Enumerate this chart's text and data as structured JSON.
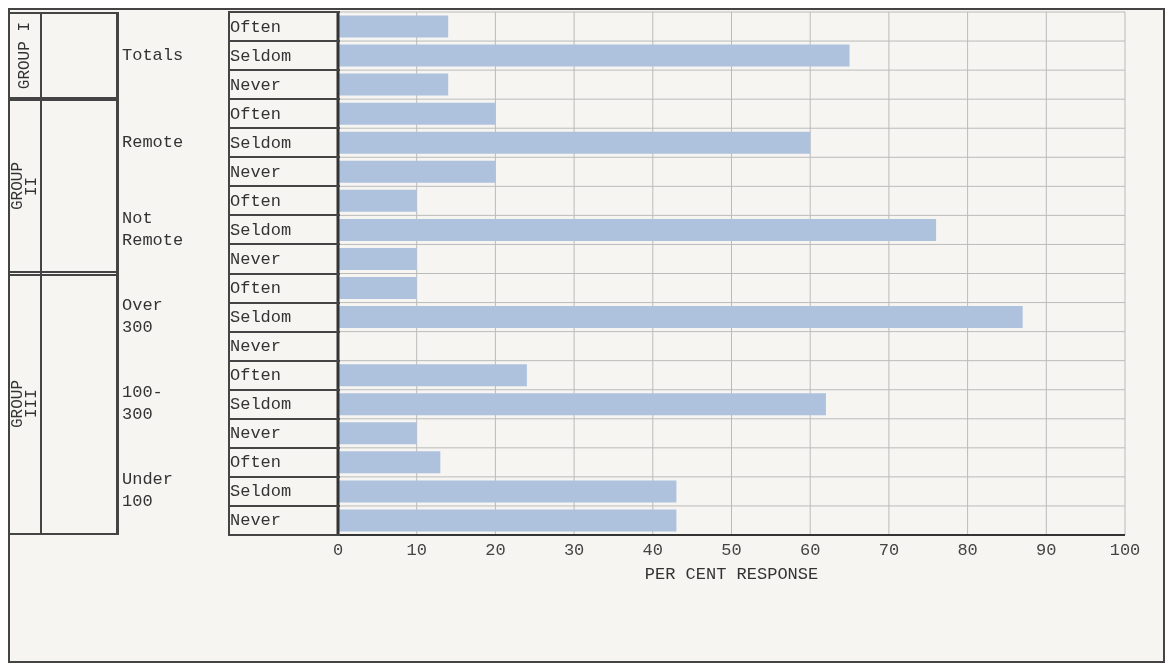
{
  "chart_data": {
    "type": "bar",
    "orientation": "horizontal",
    "xlabel": "PER CENT RESPONSE",
    "categories": [
      "Often",
      "Seldom",
      "Never",
      "Often",
      "Seldom",
      "Never",
      "Often",
      "Seldom",
      "Never",
      "Often",
      "Seldom",
      "Never",
      "Often",
      "Seldom",
      "Never",
      "Often",
      "Seldom",
      "Never"
    ],
    "values": [
      14,
      65,
      14,
      20,
      60,
      20,
      10,
      76,
      10,
      10,
      87,
      0,
      24,
      62,
      10,
      13,
      43,
      43
    ],
    "color": "#aec2de",
    "xlim": [
      0,
      100
    ],
    "xticks": [
      0,
      10,
      20,
      30,
      40,
      50,
      60,
      70,
      80,
      90,
      100
    ],
    "grid": "x",
    "annotations": [
      "GROUP I",
      "Totals",
      "GROUP II",
      "Remote",
      "Not Remote",
      "GROUP III",
      "Over 300",
      "100-300",
      "Under 100"
    ]
  }
}
